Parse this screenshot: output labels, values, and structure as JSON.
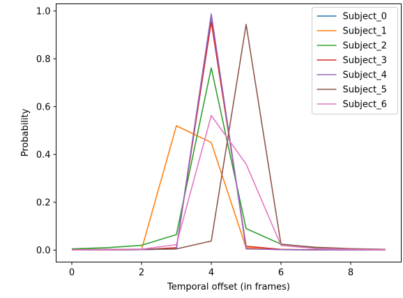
{
  "chart_data": {
    "type": "line",
    "title": "",
    "xlabel": "Temporal offset (in frames)",
    "ylabel": "Probability",
    "xlim": [
      -0.45,
      9.45
    ],
    "ylim": [
      -0.05,
      1.03
    ],
    "x": [
      0,
      1,
      2,
      3,
      4,
      5,
      6,
      7,
      8,
      9
    ],
    "xticks": [
      0,
      2,
      4,
      6,
      8
    ],
    "xtick_labels": [
      "0",
      "2",
      "4",
      "6",
      "8"
    ],
    "yticks": [
      0.0,
      0.2,
      0.4,
      0.6,
      0.8,
      1.0
    ],
    "ytick_labels": [
      "0.0",
      "0.2",
      "0.4",
      "0.6",
      "0.8",
      "1.0"
    ],
    "grid": false,
    "legend_position": "top-right",
    "series": [
      {
        "name": "Subject_0",
        "color": "#1f77b4",
        "values": [
          0.001,
          0.001,
          0.002,
          0.005,
          0.98,
          0.008,
          0.002,
          0.001,
          0.001,
          0.001
        ]
      },
      {
        "name": "Subject_1",
        "color": "#ff7f0e",
        "values": [
          0.001,
          0.001,
          0.002,
          0.52,
          0.45,
          0.01,
          0.002,
          0.001,
          0.001,
          0.001
        ]
      },
      {
        "name": "Subject_2",
        "color": "#2ca02c",
        "values": [
          0.005,
          0.01,
          0.02,
          0.065,
          0.762,
          0.09,
          0.025,
          0.01,
          0.005,
          0.003
        ]
      },
      {
        "name": "Subject_3",
        "color": "#d62728",
        "values": [
          0.001,
          0.001,
          0.002,
          0.01,
          0.955,
          0.016,
          0.003,
          0.001,
          0.001,
          0.001
        ]
      },
      {
        "name": "Subject_4",
        "color": "#9467bd",
        "values": [
          0.001,
          0.001,
          0.002,
          0.005,
          0.988,
          0.005,
          0.002,
          0.001,
          0.001,
          0.001
        ]
      },
      {
        "name": "Subject_5",
        "color": "#8c564b",
        "values": [
          0.002,
          0.003,
          0.004,
          0.005,
          0.038,
          0.944,
          0.024,
          0.012,
          0.006,
          0.003
        ]
      },
      {
        "name": "Subject_6",
        "color": "#e377c2",
        "values": [
          0.001,
          0.002,
          0.004,
          0.023,
          0.563,
          0.36,
          0.02,
          0.006,
          0.003,
          0.002
        ]
      }
    ]
  }
}
